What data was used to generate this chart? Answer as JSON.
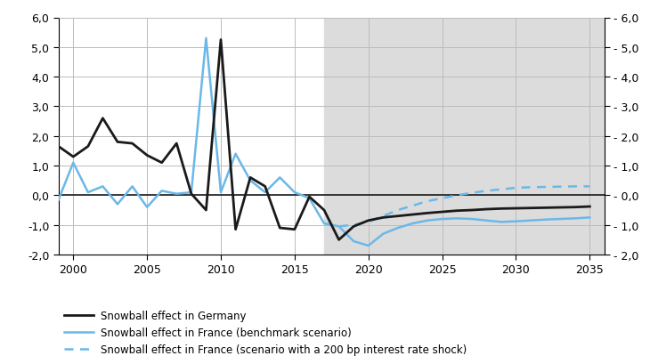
{
  "germany_x": [
    1999,
    2000,
    2001,
    2002,
    2003,
    2004,
    2005,
    2006,
    2007,
    2008,
    2009,
    2010,
    2011,
    2012,
    2013,
    2014,
    2015,
    2016,
    2017,
    2018,
    2019,
    2020,
    2021,
    2022,
    2023,
    2024,
    2025,
    2026,
    2027,
    2028,
    2029,
    2030,
    2031,
    2032,
    2033,
    2034,
    2035
  ],
  "germany_y": [
    1.65,
    1.3,
    1.65,
    2.6,
    1.8,
    1.75,
    1.35,
    1.1,
    1.75,
    0.05,
    -0.5,
    5.25,
    -1.15,
    0.6,
    0.3,
    -1.1,
    -1.15,
    -0.05,
    -0.5,
    -1.5,
    -1.05,
    -0.85,
    -0.75,
    -0.7,
    -0.65,
    -0.6,
    -0.56,
    -0.52,
    -0.5,
    -0.47,
    -0.45,
    -0.44,
    -0.43,
    -0.42,
    -0.41,
    -0.4,
    -0.38
  ],
  "france_bench_x": [
    1999,
    2000,
    2001,
    2002,
    2003,
    2004,
    2005,
    2006,
    2007,
    2008,
    2009,
    2010,
    2011,
    2012,
    2013,
    2014,
    2015,
    2016,
    2017,
    2018,
    2019,
    2020,
    2021,
    2022,
    2023,
    2024,
    2025,
    2026,
    2027,
    2028,
    2029,
    2030,
    2031,
    2032,
    2033,
    2034,
    2035
  ],
  "france_bench_y": [
    -0.15,
    1.1,
    0.1,
    0.3,
    -0.3,
    0.3,
    -0.4,
    0.15,
    0.05,
    0.1,
    5.3,
    0.1,
    1.4,
    0.5,
    0.1,
    0.6,
    0.1,
    -0.1,
    -0.95,
    -1.05,
    -1.55,
    -1.7,
    -1.3,
    -1.1,
    -0.95,
    -0.85,
    -0.8,
    -0.78,
    -0.8,
    -0.85,
    -0.9,
    -0.88,
    -0.85,
    -0.82,
    -0.8,
    -0.78,
    -0.75
  ],
  "france_shock_x": [
    2017,
    2018,
    2019,
    2020,
    2021,
    2022,
    2023,
    2024,
    2025,
    2026,
    2027,
    2028,
    2029,
    2030,
    2031,
    2032,
    2033,
    2034,
    2035
  ],
  "france_shock_y": [
    -0.95,
    -1.05,
    -1.0,
    -0.9,
    -0.7,
    -0.5,
    -0.35,
    -0.2,
    -0.1,
    0.0,
    0.08,
    0.15,
    0.2,
    0.25,
    0.27,
    0.28,
    0.29,
    0.3,
    0.3
  ],
  "shade_start": 2017,
  "shade_end": 2036,
  "xlim": [
    1999,
    2036
  ],
  "ylim": [
    -2.0,
    6.0
  ],
  "yticks": [
    -2.0,
    -1.0,
    0.0,
    1.0,
    2.0,
    3.0,
    4.0,
    5.0,
    6.0
  ],
  "xticks": [
    2000,
    2005,
    2010,
    2015,
    2020,
    2025,
    2030,
    2035
  ],
  "germany_color": "#1a1a1a",
  "france_bench_color": "#6bb8e8",
  "france_shock_color": "#6bb8e8",
  "shade_color": "#DCDCDC",
  "grid_color": "#bbbbbb",
  "zero_line_color": "#1a1a1a",
  "legend_germany": "Snowball effect in Germany",
  "legend_france_bench": "Snowball effect in France (benchmark scenario)",
  "legend_france_shock": "Snowball effect in France (scenario with a 200 bp interest rate shock)"
}
